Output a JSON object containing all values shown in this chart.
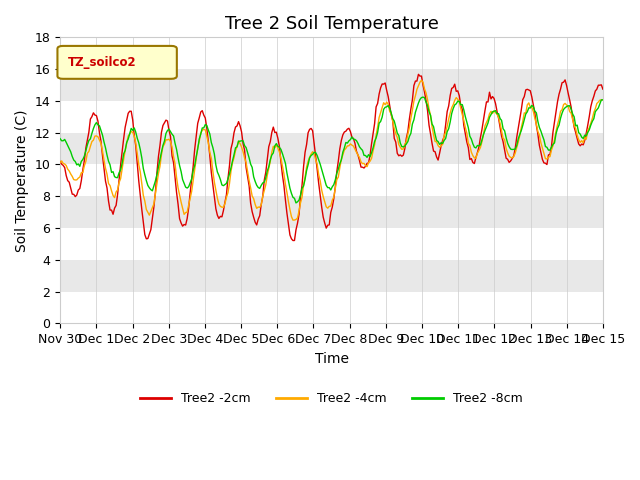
{
  "title": "Tree 2 Soil Temperature",
  "ylabel": "Soil Temperature (C)",
  "xlabel": "Time",
  "legend_title": "TZ_soilco2",
  "ylim": [
    0,
    18
  ],
  "line_colors": {
    "2cm": "#dd0000",
    "4cm": "#ffaa00",
    "8cm": "#00cc00"
  },
  "legend_labels": [
    "Tree2 -2cm",
    "Tree2 -4cm",
    "Tree2 -8cm"
  ],
  "x_tick_labels": [
    "Nov 30",
    "Dec 1",
    "Dec 2",
    "Dec 3",
    "Dec 4",
    "Dec 5",
    "Dec 6",
    "Dec 7",
    "Dec 8",
    "Dec 9",
    "Dec 10",
    "Dec 11",
    "Dec 12",
    "Dec 13",
    "Dec 14",
    "Dec 15"
  ],
  "background_color": "#ffffff",
  "plot_bg_color": "#e8e8e8",
  "band_color": "#ffffff",
  "title_fontsize": 13,
  "axis_label_fontsize": 10,
  "tick_fontsize": 9
}
